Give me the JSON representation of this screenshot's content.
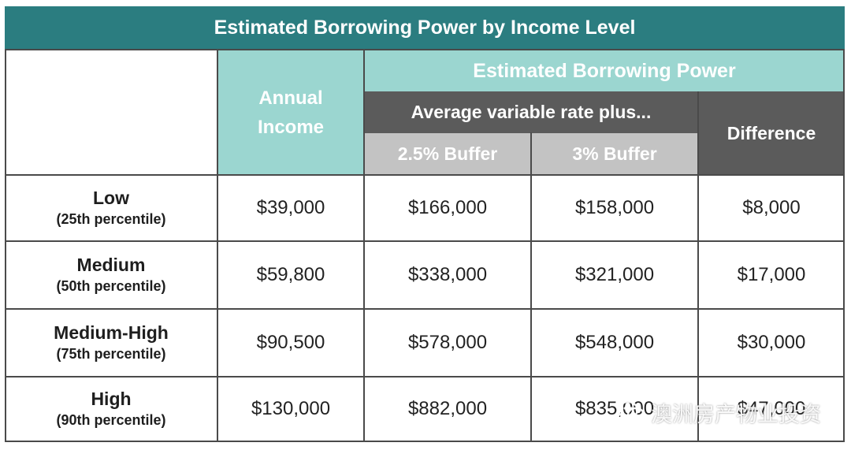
{
  "title": "Estimated Borrowing Power by Income Level",
  "header": {
    "annual_income": "Annual Income",
    "group": "Estimated Borrowing Power",
    "subgroup": "Average variable rate plus...",
    "buffer1": "2.5% Buffer",
    "buffer2": "3% Buffer",
    "difference": "Difference"
  },
  "rows": [
    {
      "label": "Low",
      "sub": "(25th percentile)",
      "income": "$39,000",
      "b25": "$166,000",
      "b3": "$158,000",
      "diff": "$8,000"
    },
    {
      "label": "Medium",
      "sub": "(50th percentile)",
      "income": "$59,800",
      "b25": "$338,000",
      "b3": "$321,000",
      "diff": "$17,000"
    },
    {
      "label": "Medium-High",
      "sub": "(75th percentile)",
      "income": "$90,500",
      "b25": "$578,000",
      "b3": "$548,000",
      "diff": "$30,000"
    },
    {
      "label": "High",
      "sub": "(90th percentile)",
      "income": "$130,000",
      "b25": "$882,000",
      "b3": "$835,000",
      "diff": "$47,000"
    }
  ],
  "watermark": {
    "text": "澳洲房产物业投资",
    "icon": "wechat-icon"
  },
  "colors": {
    "title_bg": "#2b7d80",
    "teal_header": "#9bd6d0",
    "dark_header": "#5b5b5b",
    "buffer_header": "#c3c3c3"
  }
}
